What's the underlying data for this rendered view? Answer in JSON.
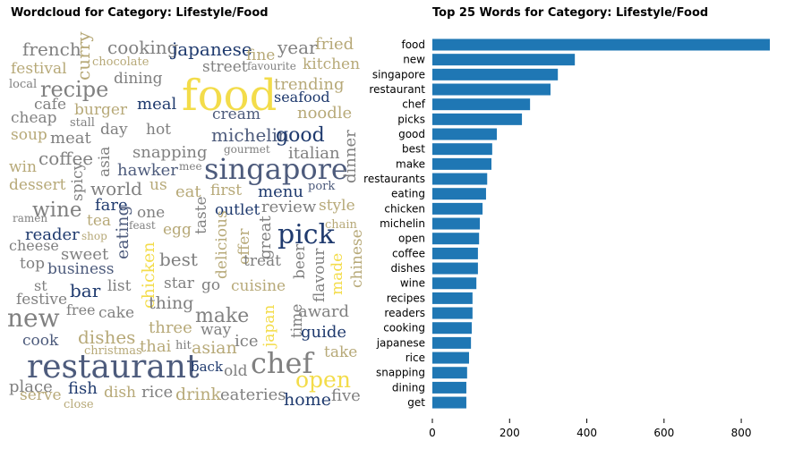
{
  "chart_data": [
    {
      "type": "wordcloud",
      "title": "Wordcloud for Category: Lifestyle/Food",
      "words": [
        "french",
        "curry",
        "cooking",
        "japanese",
        "fine",
        "year",
        "fried",
        "festival",
        "chocolate",
        "street",
        "favourite",
        "kitchen",
        "local",
        "dining",
        "food",
        "trending",
        "recipe",
        "seafood",
        "cafe",
        "meal",
        "burger",
        "noodle",
        "cheap",
        "stall",
        "cream",
        "day",
        "hot",
        "soup",
        "meat",
        "michelin",
        "good",
        "gourmet",
        "snapping",
        "italian",
        "win",
        "coffee",
        "asia",
        "mee",
        "hawker",
        "singapore",
        "dinner",
        "dessert",
        "spicy",
        "us",
        "pork",
        "world",
        "eat",
        "first",
        "menu",
        "fare",
        "review",
        "style",
        "wine",
        "one",
        "taste",
        "outlet",
        "ramen",
        "tea",
        "feast",
        "chain",
        "egg",
        "shop",
        "pick",
        "reader",
        "cheese",
        "eating",
        "great",
        "delicious",
        "offer",
        "sweet",
        "best",
        "treat",
        "beer",
        "top",
        "business",
        "chicken",
        "flavour",
        "made",
        "chinese",
        "list",
        "star",
        "st",
        "go",
        "cuisine",
        "festive",
        "bar",
        "thing",
        "free",
        "cake",
        "make",
        "award",
        "new",
        "time",
        "japan",
        "three",
        "way",
        "guide",
        "cook",
        "dishes",
        "ice",
        "thai",
        "christmas",
        "hit",
        "asian",
        "take",
        "restaurant",
        "chef",
        "back",
        "old",
        "open",
        "place",
        "fish",
        "dish",
        "rice",
        "drink",
        "eateries",
        "five",
        "serve",
        "close",
        "home"
      ]
    },
    {
      "type": "barh",
      "title": "Top 25 Words for Category: Lifestyle/Food",
      "categories": [
        "food",
        "new",
        "singapore",
        "restaurant",
        "chef",
        "picks",
        "good",
        "best",
        "make",
        "restaurants",
        "eating",
        "chicken",
        "michelin",
        "open",
        "coffee",
        "dishes",
        "wine",
        "recipes",
        "readers",
        "cooking",
        "japanese",
        "rice",
        "snapping",
        "dining",
        "get"
      ],
      "values": [
        874,
        369,
        325,
        306,
        253,
        232,
        167,
        155,
        153,
        142,
        139,
        130,
        123,
        121,
        118,
        118,
        114,
        104,
        104,
        102,
        100,
        95,
        90,
        88,
        88
      ],
      "color": "#1f77b4",
      "xlim": [
        0,
        874
      ],
      "xticks": [
        0,
        200,
        400,
        600,
        800
      ]
    }
  ]
}
